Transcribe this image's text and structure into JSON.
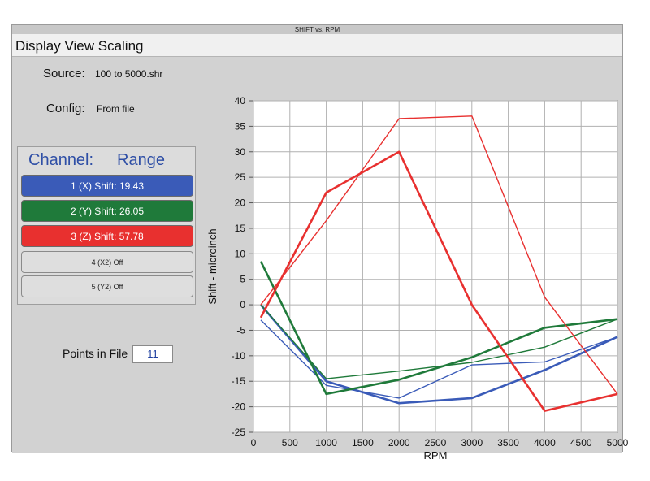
{
  "window": {
    "title": "SHIFT vs. RPM"
  },
  "menu": {
    "title": "Display View Scaling"
  },
  "info": {
    "source_label": "Source:",
    "source_value": "100 to 5000.shr",
    "config_label": "Config:",
    "config_value": "From file"
  },
  "channels": {
    "header_channel": "Channel:",
    "header_range": "Range",
    "items": [
      {
        "label": "1 (X) Shift: 19.43",
        "color": "#3a5bb8"
      },
      {
        "label": "2 (Y) Shift: 26.05",
        "color": "#1f7a3a"
      },
      {
        "label": "3 (Z) Shift: 57.78",
        "color": "#e8302f"
      },
      {
        "label": "4 (X2) Off"
      },
      {
        "label": "5 (Y2) Off"
      }
    ]
  },
  "points": {
    "label": "Points in File",
    "value": "11"
  },
  "chart_data": {
    "type": "line",
    "xlabel": "RPM",
    "ylabel": "Shift - microinch",
    "xlim": [
      0,
      5000
    ],
    "ylim": [
      -25,
      40
    ],
    "grid": true,
    "x_ticks": [
      0,
      500,
      1000,
      1500,
      2000,
      2500,
      3000,
      3500,
      4000,
      4500,
      5000
    ],
    "y_ticks": [
      -25,
      -20,
      -15,
      -10,
      -5,
      0,
      5,
      10,
      15,
      20,
      25,
      30,
      35,
      40
    ],
    "x": [
      100,
      1000,
      2000,
      3000,
      4000,
      5000,
      4000,
      3000,
      2000,
      1000,
      100
    ],
    "series": [
      {
        "name": "1 (X) Shift",
        "color": "#3a5bb8",
        "values": [
          0,
          -15,
          -19.3,
          -18.3,
          -12.8,
          -6.3,
          -11.2,
          -11.8,
          -18.3,
          -15.8,
          -3
        ]
      },
      {
        "name": "2 (Y) Shift",
        "color": "#1f7a3a",
        "values": [
          8.5,
          -17.5,
          -14.7,
          -10.3,
          -4.5,
          -2.8,
          -8.3,
          -11.3,
          -13,
          -14.5,
          0
        ]
      },
      {
        "name": "3 (Z) Shift",
        "color": "#e8302f",
        "values": [
          -2.5,
          22,
          30,
          0,
          -20.8,
          -17.5,
          1.5,
          37,
          36.5,
          16.5,
          0
        ]
      }
    ]
  }
}
